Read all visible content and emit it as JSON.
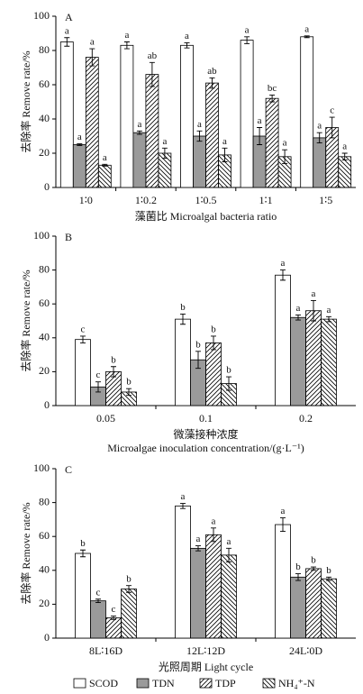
{
  "chart_data": [
    {
      "type": "bar",
      "panel": "A",
      "ylabel": "去除率 Remove rate/%",
      "xlabel": "藻菌比 Microalgal bacteria ratio",
      "categories": [
        "1∶0",
        "1∶0.2",
        "1∶0.5",
        "1∶1",
        "1∶5"
      ],
      "ylim": [
        0,
        100
      ],
      "yticks": [
        0,
        20,
        40,
        60,
        80,
        100
      ],
      "series": [
        {
          "name": "SCOD",
          "color": "#ffffff",
          "values": [
            85,
            83,
            83,
            86,
            88
          ],
          "errors": [
            2.5,
            2,
            1.5,
            2,
            0.5
          ],
          "letters": [
            "a",
            "a",
            "a",
            "a",
            "a"
          ]
        },
        {
          "name": "TDN",
          "color": "#9a9a9a",
          "values": [
            25,
            32,
            30,
            30,
            29
          ],
          "errors": [
            0.5,
            1,
            3,
            5,
            3
          ],
          "letters": [
            "a",
            "a",
            "a",
            "a",
            "a"
          ]
        },
        {
          "name": "TDP",
          "color": "#ffffff",
          "hatch": "/",
          "values": [
            76,
            66,
            61,
            52,
            35
          ],
          "errors": [
            5,
            7,
            3,
            2,
            6
          ],
          "letters": [
            "a",
            "ab",
            "ab",
            "bc",
            "c"
          ]
        },
        {
          "name": "NH₄⁺-N",
          "color": "#ffffff",
          "hatch": "\\",
          "values": [
            13,
            20,
            19,
            18,
            18
          ],
          "errors": [
            0.5,
            3,
            4,
            4,
            2
          ],
          "letters": [
            "a",
            "a",
            "a",
            "a",
            "a"
          ]
        }
      ]
    },
    {
      "type": "bar",
      "panel": "B",
      "ylabel": "去除率 Remove rate/%",
      "xlabel": "微藻接种浓度",
      "xlabel2": "Microalgae inoculation concentration/(g·L⁻¹)",
      "categories": [
        "0.05",
        "0.1",
        "0.2"
      ],
      "ylim": [
        0,
        100
      ],
      "yticks": [
        0,
        20,
        40,
        60,
        80,
        100
      ],
      "series": [
        {
          "values": [
            39,
            51,
            77
          ],
          "errors": [
            2,
            3,
            3
          ],
          "letters": [
            "c",
            "b",
            "a"
          ]
        },
        {
          "values": [
            11,
            27,
            52
          ],
          "errors": [
            3,
            5,
            1.5
          ],
          "letters": [
            "c",
            "b",
            "a"
          ]
        },
        {
          "values": [
            20,
            37,
            56
          ],
          "errors": [
            3,
            4,
            6
          ],
          "letters": [
            "b",
            "b",
            "a"
          ]
        },
        {
          "values": [
            8,
            13,
            51
          ],
          "errors": [
            2,
            4,
            1.5
          ],
          "letters": [
            "b",
            "b",
            "a"
          ]
        }
      ]
    },
    {
      "type": "bar",
      "panel": "C",
      "ylabel": "去除率 Remove rate/%",
      "xlabel": "光照周期 Light cycle",
      "categories": [
        "8L∶16D",
        "12L∶12D",
        "24L∶0D"
      ],
      "ylim": [
        0,
        100
      ],
      "yticks": [
        0,
        20,
        40,
        60,
        80,
        100
      ],
      "series": [
        {
          "values": [
            50,
            78,
            67
          ],
          "errors": [
            2,
            1.5,
            4
          ],
          "letters": [
            "b",
            "a",
            "a"
          ]
        },
        {
          "values": [
            22,
            53,
            36
          ],
          "errors": [
            1,
            1.5,
            2
          ],
          "letters": [
            "c",
            "a",
            "b"
          ]
        },
        {
          "values": [
            12,
            61,
            41
          ],
          "errors": [
            1,
            4,
            1
          ],
          "letters": [
            "c",
            "a",
            "b"
          ]
        },
        {
          "values": [
            29,
            49,
            35
          ],
          "errors": [
            2,
            4,
            1
          ],
          "letters": [
            "b",
            "a",
            "b"
          ]
        }
      ]
    }
  ]
}
